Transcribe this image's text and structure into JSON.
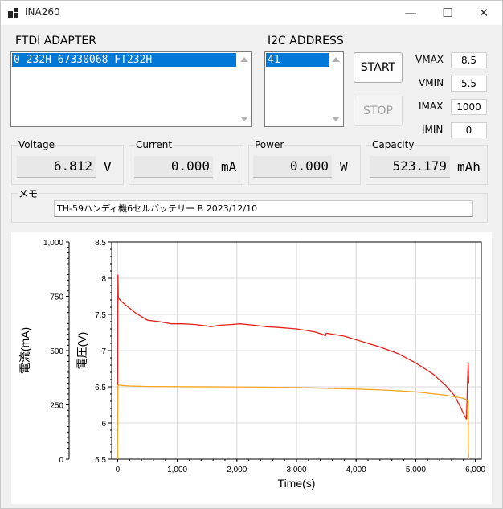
{
  "window": {
    "title": "INA260",
    "minimize_glyph": "—",
    "maximize_glyph": "☐",
    "close_glyph": "✕"
  },
  "ftdi": {
    "label": "FTDI ADAPTER",
    "selected_item": "0 232H 67330068 FT232H"
  },
  "i2c": {
    "label": "I2C ADDRESS",
    "selected_item": "41"
  },
  "buttons": {
    "start": "START",
    "stop": "STOP"
  },
  "limits": [
    {
      "label": "VMAX",
      "value": "8.5"
    },
    {
      "label": "VMIN",
      "value": "5.5"
    },
    {
      "label": "IMAX",
      "value": "1000"
    },
    {
      "label": "IMIN",
      "value": "0"
    }
  ],
  "readouts": [
    {
      "title": "Voltage",
      "value": "6.812",
      "unit": "V"
    },
    {
      "title": "Current",
      "value": "0.000",
      "unit": "mA"
    },
    {
      "title": "Power",
      "value": "0.000",
      "unit": "W"
    },
    {
      "title": "Capacity",
      "value": "523.179",
      "unit": "mAh"
    }
  ],
  "memo": {
    "label": "メモ",
    "value": "TH-59ハンディ機6セルバッテリー B 2023/12/10"
  },
  "colors": {
    "accent": "#0078d7",
    "voltage_line": "#e8201c",
    "current_line": "#f5a623"
  },
  "chart_data": {
    "type": "line",
    "xlabel": "Time(s)",
    "y_left_label": "電流(mA)",
    "y_right_label": "電圧(V)",
    "xlim": [
      -100,
      6100
    ],
    "x_ticks": [
      0,
      1000,
      2000,
      3000,
      4000,
      5000,
      6000
    ],
    "x_tick_labels": [
      "0",
      "1,000",
      "2,000",
      "3,000",
      "4,000",
      "5,000",
      "6,000"
    ],
    "current_axis": {
      "ylim": [
        0,
        1000
      ],
      "ticks": [
        0,
        250,
        500,
        750,
        1000
      ],
      "tick_labels": [
        "0",
        "250",
        "500",
        "750",
        "1,000"
      ]
    },
    "voltage_axis": {
      "ylim": [
        5.5,
        8.5
      ],
      "ticks": [
        5.5,
        6,
        6.5,
        7,
        7.5,
        8,
        8.5
      ],
      "tick_labels": [
        "5.5",
        "6",
        "6.5",
        "7",
        "7.5",
        "8",
        "8.5"
      ]
    },
    "grid": true,
    "series": [
      {
        "axis": "voltage",
        "x": [
          0,
          5,
          10,
          20,
          60,
          150,
          300,
          420,
          500,
          700,
          900,
          1100,
          1300,
          1500,
          1560,
          1700,
          1900,
          2050,
          2300,
          2500,
          2700,
          3000,
          3300,
          3460,
          3480,
          3500,
          3800,
          4000,
          4200,
          4400,
          4700,
          5000,
          5300,
          5500,
          5650,
          5750,
          5820,
          5850,
          5860,
          5870,
          5880,
          5890
        ],
        "y": [
          5.95,
          8.05,
          7.75,
          7.72,
          7.68,
          7.62,
          7.52,
          7.46,
          7.42,
          7.4,
          7.37,
          7.37,
          7.36,
          7.34,
          7.33,
          7.35,
          7.36,
          7.37,
          7.35,
          7.33,
          7.32,
          7.3,
          7.26,
          7.22,
          7.2,
          7.24,
          7.2,
          7.15,
          7.1,
          7.05,
          6.96,
          6.83,
          6.67,
          6.52,
          6.38,
          6.22,
          6.1,
          6.05,
          6.3,
          6.6,
          6.82,
          6.55
        ]
      },
      {
        "axis": "current",
        "x": [
          0,
          2,
          10,
          50,
          200,
          500,
          1000,
          2000,
          3000,
          4000,
          4500,
          5000,
          5500,
          5800,
          5880,
          5882,
          5890
        ],
        "y": [
          0,
          340,
          342,
          340,
          337,
          335,
          334,
          333,
          330,
          323,
          318,
          310,
          295,
          280,
          270,
          60,
          0
        ]
      }
    ]
  }
}
